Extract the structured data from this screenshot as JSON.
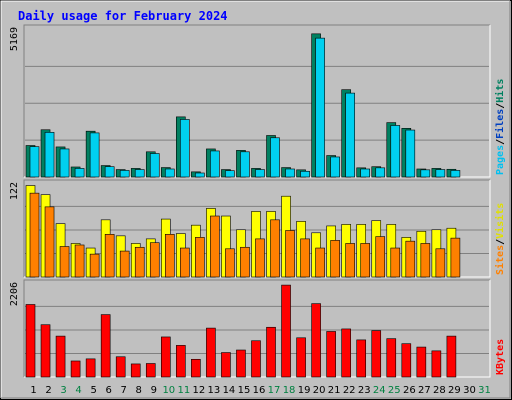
{
  "chart_data": {
    "type": "bar",
    "title": "Daily usage for February 2024",
    "days": [
      "1",
      "2",
      "3",
      "4",
      "5",
      "6",
      "7",
      "8",
      "9",
      "10",
      "11",
      "12",
      "13",
      "14",
      "15",
      "16",
      "17",
      "18",
      "19",
      "20",
      "21",
      "22",
      "23",
      "24",
      "25",
      "26",
      "27",
      "28",
      "29",
      "30",
      "31"
    ],
    "weekend_days": [
      3,
      4,
      10,
      11,
      17,
      18,
      24,
      25,
      31
    ],
    "colors": {
      "background": "#c0c0c0",
      "title": "#0000ff",
      "pages": "#00b0b0",
      "files": "#00d0f0",
      "hits": "#00805c",
      "visits": "#ffff00",
      "sites": "#ff8000",
      "kbytes": "#ff0000",
      "weekend_label": "#008040",
      "weekday_label": "#000000"
    },
    "panels": [
      {
        "id": "pages_files_hits",
        "max_label": "5169",
        "ymax": 5169,
        "right_label": [
          {
            "text": "Pages",
            "color": "#00c0f0"
          },
          {
            "text": "Files",
            "color": "#0040c0"
          },
          {
            "text": "Hits",
            "color": "#008060"
          }
        ],
        "series": [
          {
            "name": "Hits",
            "color": "#008060",
            "values": [
              1100,
              1650,
              1050,
              350,
              1600,
              400,
              260,
              300,
              880,
              330,
              2100,
              180,
              980,
              260,
              930,
              300,
              1450,
              330,
              250,
              5000,
              750,
              3050,
              320,
              360,
              1900,
              1700,
              280,
              300,
              270,
              0,
              0
            ]
          },
          {
            "name": "Files",
            "color": "#00d0f0",
            "values": [
              1060,
              1560,
              980,
              300,
              1540,
              360,
              230,
              260,
              820,
              280,
              2010,
              140,
              910,
              220,
              880,
              260,
              1370,
              280,
              200,
              4850,
              700,
              2930,
              280,
              320,
              1800,
              1640,
              250,
              260,
              230,
              0,
              0
            ]
          }
        ]
      },
      {
        "id": "visits_sites",
        "max_label": "122",
        "ymax": 122,
        "right_label": [
          {
            "text": "Sites",
            "color": "#ff8000"
          },
          {
            "text": "Visits",
            "color": "#e0e000"
          }
        ],
        "series": [
          {
            "name": "Visits",
            "color": "#ffff00",
            "values": [
              120,
              108,
              70,
              44,
              38,
              75,
              54,
              44,
              50,
              76,
              57,
              68,
              90,
              80,
              62,
              86,
              86,
              106,
              73,
              58,
              67,
              69,
              69,
              74,
              69,
              52,
              60,
              62,
              64,
              0,
              0
            ]
          },
          {
            "name": "Sites",
            "color": "#ff8000",
            "values": [
              110,
              92,
              40,
              42,
              30,
              56,
              34,
              39,
              45,
              56,
              38,
              52,
              80,
              37,
              39,
              50,
              75,
              61,
              50,
              38,
              48,
              44,
              44,
              53,
              38,
              47,
              44,
              37,
              51,
              0,
              0
            ]
          }
        ]
      },
      {
        "id": "kbytes",
        "max_label": "2206",
        "ymax": 2206,
        "right_label": [
          {
            "text": "KBytes",
            "color": "#ff0000"
          }
        ],
        "series": [
          {
            "name": "KBytes",
            "color": "#ff0000",
            "values": [
              1720,
              1240,
              970,
              380,
              430,
              1480,
              480,
              310,
              320,
              950,
              750,
              420,
              1160,
              580,
              640,
              860,
              1180,
              2180,
              930,
              1740,
              1080,
              1140,
              880,
              1100,
              910,
              790,
              710,
              620,
              970,
              0,
              0
            ]
          }
        ]
      }
    ]
  }
}
